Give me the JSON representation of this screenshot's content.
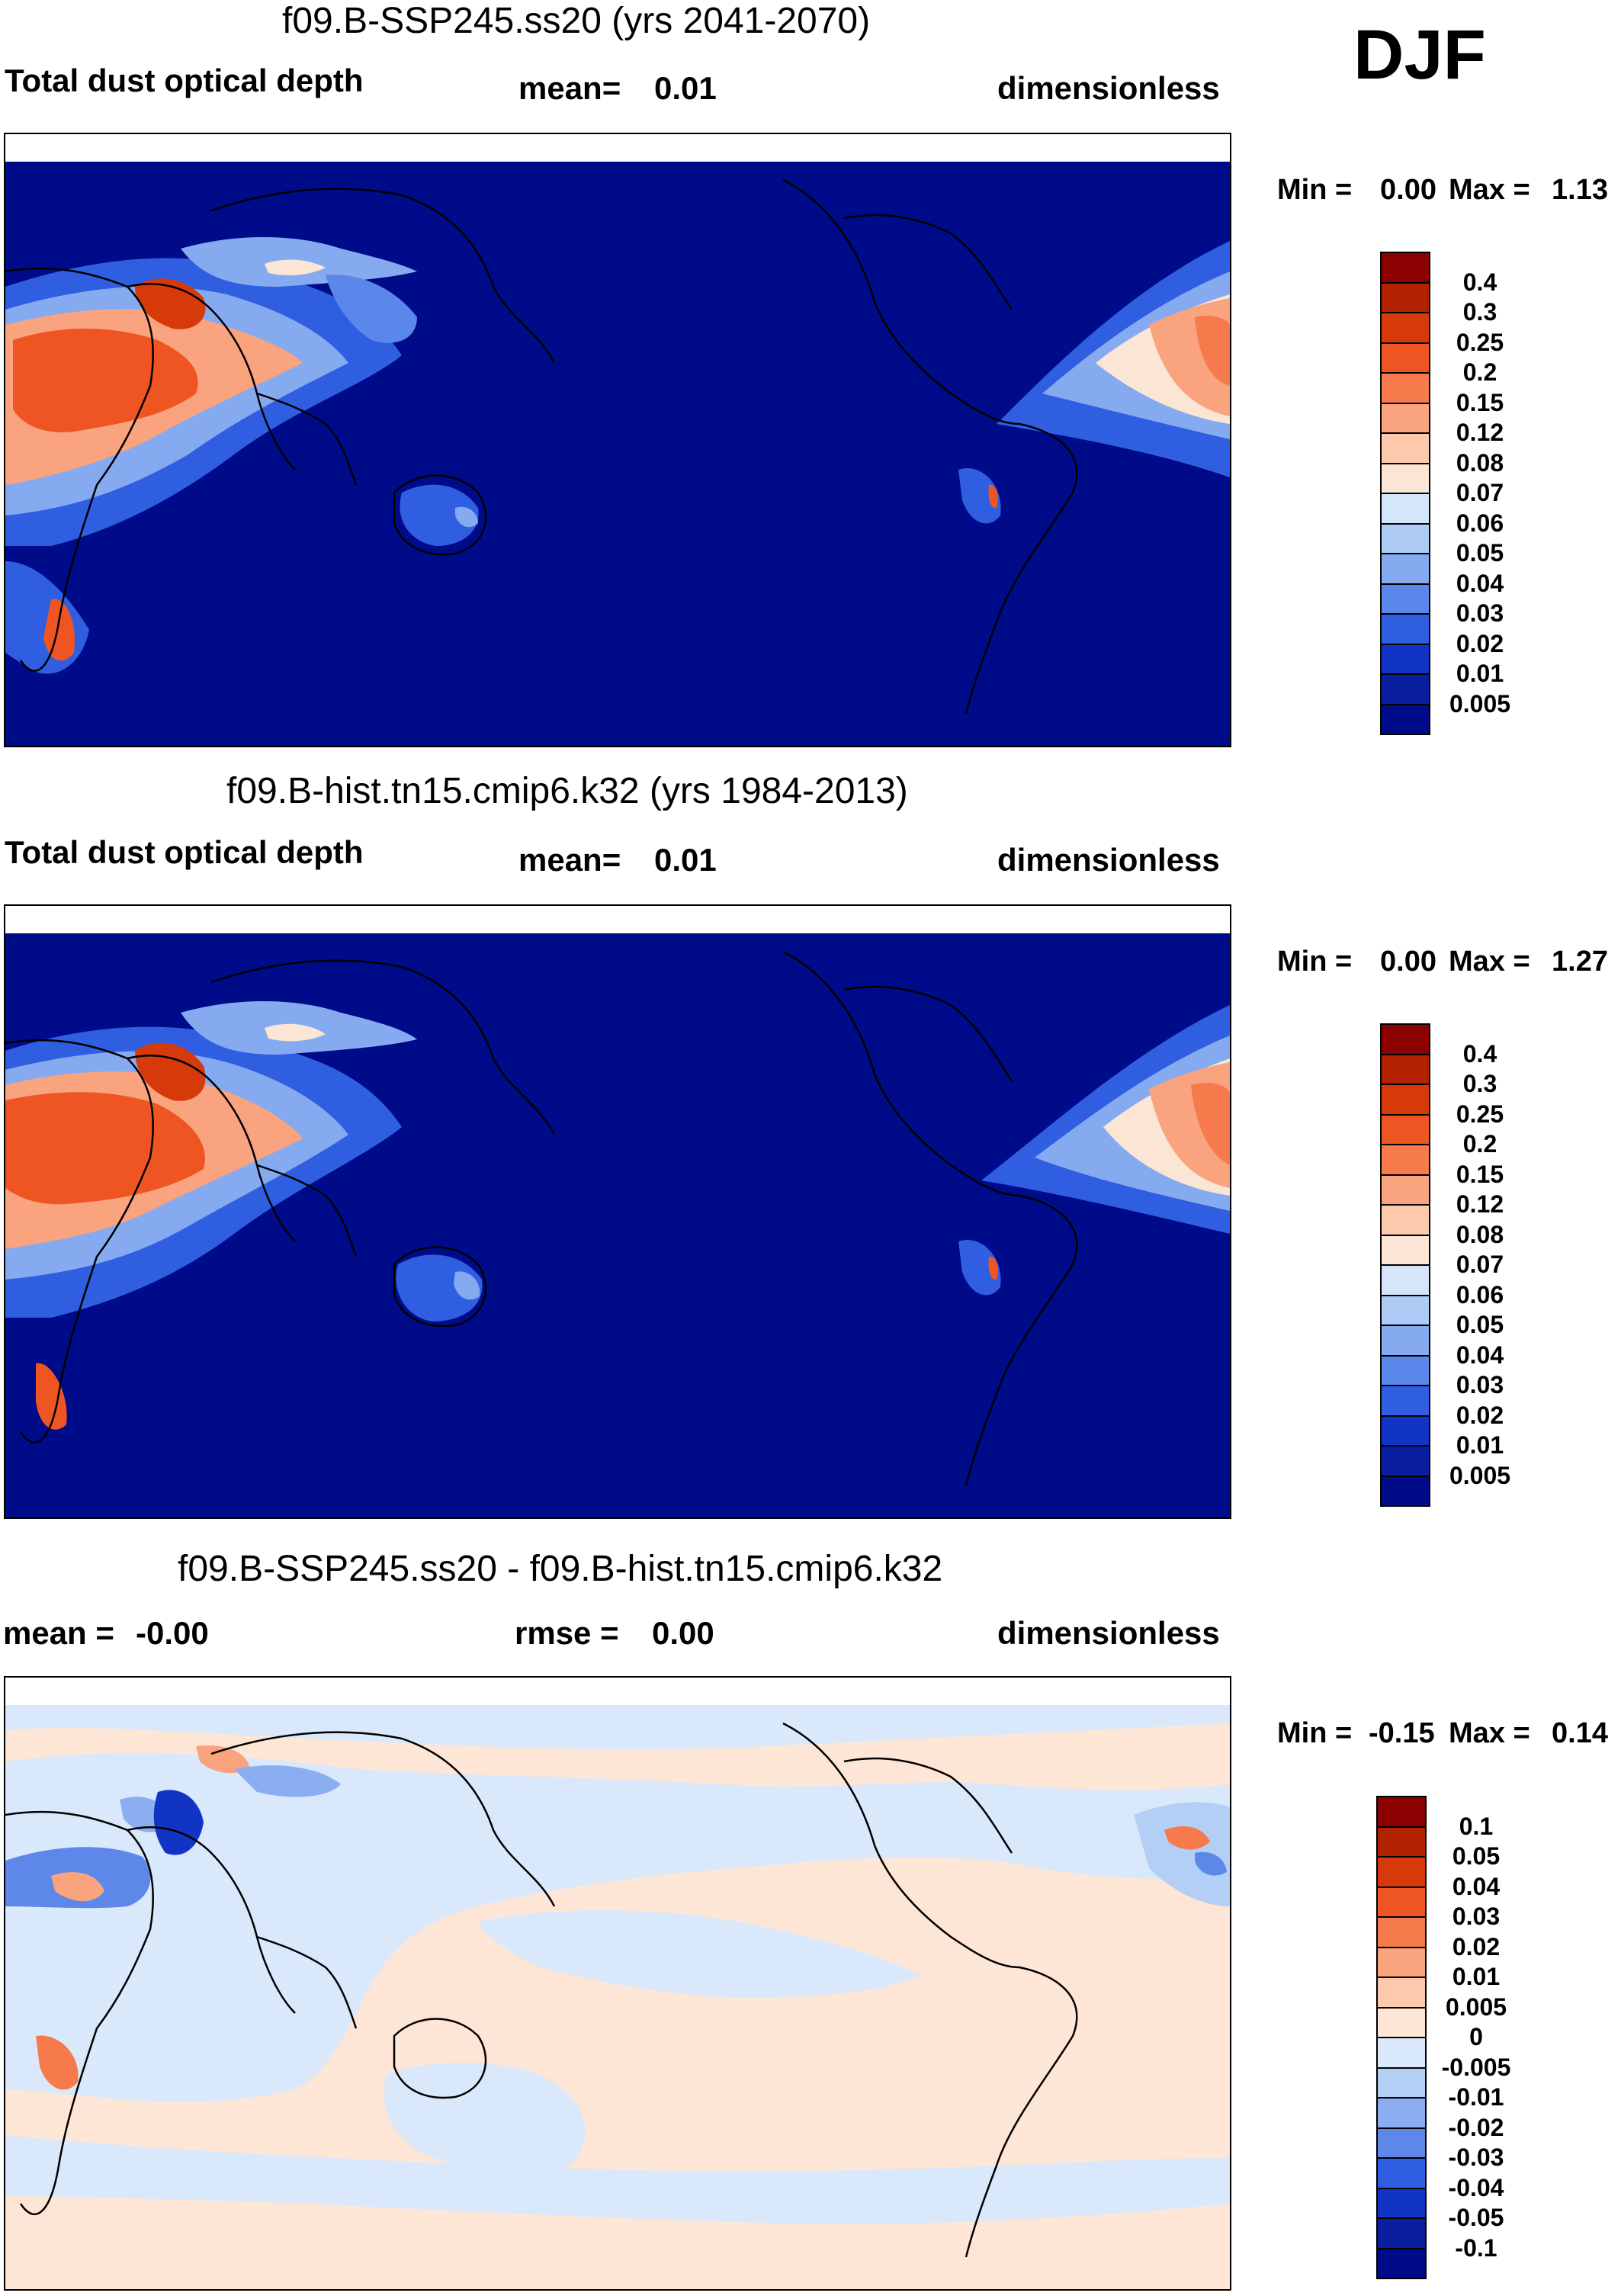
{
  "season": "DJF",
  "panels": [
    {
      "title": "f09.B-SSP245.ss20 (yrs 2041-2070)",
      "left_label": "Total dust optical depth",
      "mean_label": "mean=",
      "mean_value": "0.01",
      "units": "dimensionless",
      "min_label": "Min =",
      "min_value": "0.00",
      "max_label": "Max =",
      "max_value": "1.13",
      "colorbar": [
        "0.4",
        "0.3",
        "0.25",
        "0.2",
        "0.15",
        "0.12",
        "0.08",
        "0.07",
        "0.06",
        "0.05",
        "0.04",
        "0.03",
        "0.02",
        "0.01",
        "0.005"
      ]
    },
    {
      "title": "f09.B-hist.tn15.cmip6.k32 (yrs 1984-2013)",
      "left_label": "Total dust optical depth",
      "mean_label": "mean=",
      "mean_value": "0.01",
      "units": "dimensionless",
      "min_label": "Min =",
      "min_value": "0.00",
      "max_label": "Max =",
      "max_value": "1.27",
      "colorbar": [
        "0.4",
        "0.3",
        "0.25",
        "0.2",
        "0.15",
        "0.12",
        "0.08",
        "0.07",
        "0.06",
        "0.05",
        "0.04",
        "0.03",
        "0.02",
        "0.01",
        "0.005"
      ]
    },
    {
      "title": "f09.B-SSP245.ss20 - f09.B-hist.tn15.cmip6.k32",
      "mean_label": "mean =",
      "mean_value": "-0.00",
      "rmse_label": "rmse =",
      "rmse_value": "0.00",
      "units": "dimensionless",
      "min_label": "Min =",
      "min_value": "-0.15",
      "max_label": "Max =",
      "max_value": "0.14",
      "colorbar": [
        "0.1",
        "0.05",
        "0.04",
        "0.03",
        "0.02",
        "0.01",
        "0.005",
        "0",
        "-0.005",
        "-0.01",
        "-0.02",
        "-0.03",
        "-0.04",
        "-0.05",
        "-0.1"
      ]
    }
  ],
  "colors": {
    "abs_scale": [
      "#8b0000",
      "#b22200",
      "#d63a0a",
      "#ee5522",
      "#f67a4c",
      "#f9a37f",
      "#fcc9ac",
      "#fbe6d6",
      "#d6e6fa",
      "#aecbf6",
      "#86aaf0",
      "#5b86ea",
      "#2f5fe0",
      "#1234c4",
      "#0a1fa0",
      "#000b8a"
    ],
    "diff_scale": [
      "#8b0000",
      "#b22200",
      "#d63a0a",
      "#ee5522",
      "#f67a4c",
      "#f9a37f",
      "#fcc9ac",
      "#fde6d6",
      "#d9e8fb",
      "#b4cff6",
      "#8aaef0",
      "#5d88ea",
      "#2f5fe0",
      "#1234c4",
      "#0a1fa0",
      "#000b8a"
    ],
    "map_background": "#000b8a",
    "diff_background_pos": "#fde6d6",
    "diff_background_neg": "#d9e8fb"
  }
}
